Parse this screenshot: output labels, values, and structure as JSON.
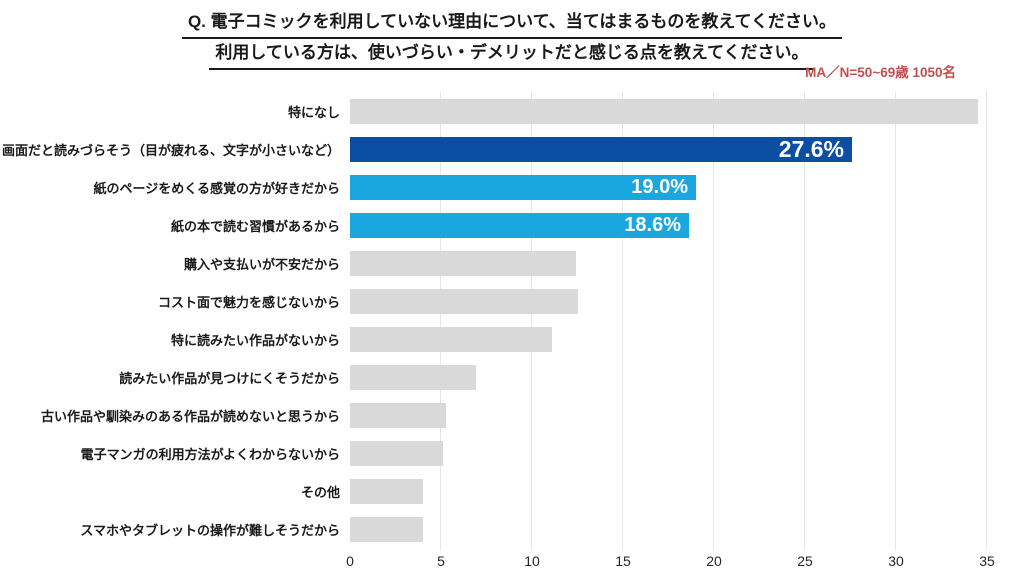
{
  "title": {
    "line1": "Q. 電子コミックを利用していない理由について、当てはまるものを教えてください。",
    "line2": "利用している方は、使いづらい・デメリットだと感じる点を教えてください。"
  },
  "note": "MA／N=50~69歳 1050名",
  "colors": {
    "primary": "#0b4ea2",
    "secondary": "#1aa7e0",
    "default": "#d9d9d9",
    "note_red": "#c0504d",
    "gridline": "#e6e6e6",
    "text": "#1a1a1a",
    "value_label": "#ffffff"
  },
  "chart_data": {
    "type": "bar",
    "orientation": "horizontal",
    "title": "Q. 電子コミックを利用していない理由について、当てはまるものを教えてください。利用している方は、使いづらい・デメリットだと感じる点を教えてください。",
    "subtitle": "MA／N=50~69歳 1050名",
    "categories": [
      "特になし",
      "画面だと読みづらそう（目が疲れる、文字が小さいなど）",
      "紙のページをめくる感覚の方が好きだから",
      "紙の本で読む習慣があるから",
      "購入や支払いが不安だから",
      "コスト面で魅力を感じないから",
      "特に読みたい作品がないから",
      "読みたい作品が見つけにくそうだから",
      "古い作品や馴染みのある作品が読めないと思うから",
      "電子マンガの利用方法がよくわからないから",
      "その他",
      "スマホやタブレットの操作が難しそうだから"
    ],
    "values": [
      34.5,
      27.6,
      19.0,
      18.6,
      12.4,
      12.5,
      11.1,
      6.9,
      5.3,
      5.1,
      4.0,
      4.0
    ],
    "value_labels": [
      "",
      "27.6%",
      "19.0%",
      "18.6%",
      "",
      "",
      "",
      "",
      "",
      "",
      "",
      ""
    ],
    "bar_colors": [
      "default",
      "primary",
      "secondary",
      "secondary",
      "default",
      "default",
      "default",
      "default",
      "default",
      "default",
      "default",
      "default"
    ],
    "xlabel": "",
    "ylabel": "",
    "xlim": [
      0,
      35
    ],
    "x_ticks": [
      0,
      5,
      10,
      15,
      20,
      25,
      30,
      35
    ],
    "grid": true,
    "legend": false
  }
}
